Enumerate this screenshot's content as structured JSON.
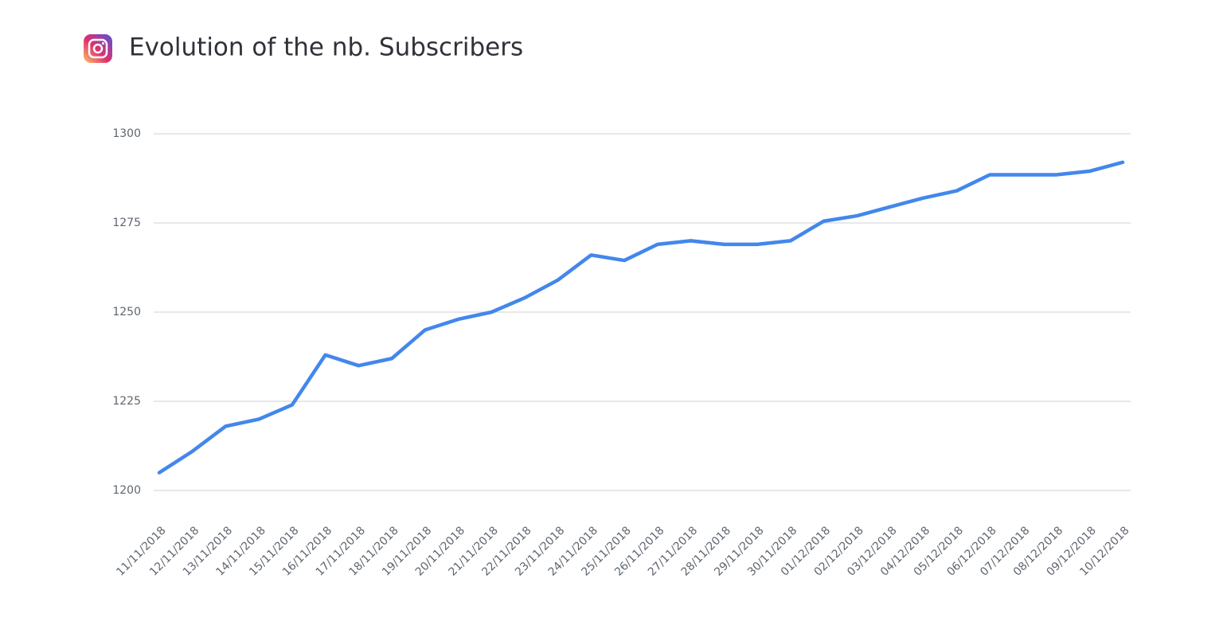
{
  "chart_data": {
    "type": "line",
    "title": "Evolution of the nb. Subscribers",
    "categories": [
      "11/11/2018",
      "12/11/2018",
      "13/11/2018",
      "14/11/2018",
      "15/11/2018",
      "16/11/2018",
      "17/11/2018",
      "18/11/2018",
      "19/11/2018",
      "20/11/2018",
      "21/11/2018",
      "22/11/2018",
      "23/11/2018",
      "24/11/2018",
      "25/11/2018",
      "26/11/2018",
      "27/11/2018",
      "28/11/2018",
      "29/11/2018",
      "30/11/2018",
      "01/12/2018",
      "02/12/2018",
      "03/12/2018",
      "04/12/2018",
      "05/12/2018",
      "06/12/2018",
      "07/12/2018",
      "08/12/2018",
      "09/12/2018",
      "10/12/2018"
    ],
    "values": [
      1205,
      1211,
      1218,
      1220,
      1224,
      1238,
      1235,
      1237,
      1245,
      1248,
      1250,
      1254,
      1259,
      1266,
      1264.5,
      1269,
      1270,
      1269,
      1269,
      1270,
      1275.5,
      1277,
      1279.5,
      1282,
      1284,
      1288.5,
      1288.5,
      1288.5,
      1289.5,
      1292
    ],
    "color": "#4287ec",
    "ylim": [
      1200,
      1300
    ],
    "yticks": [
      1200,
      1225,
      1250,
      1275,
      1300
    ],
    "grid": true
  }
}
